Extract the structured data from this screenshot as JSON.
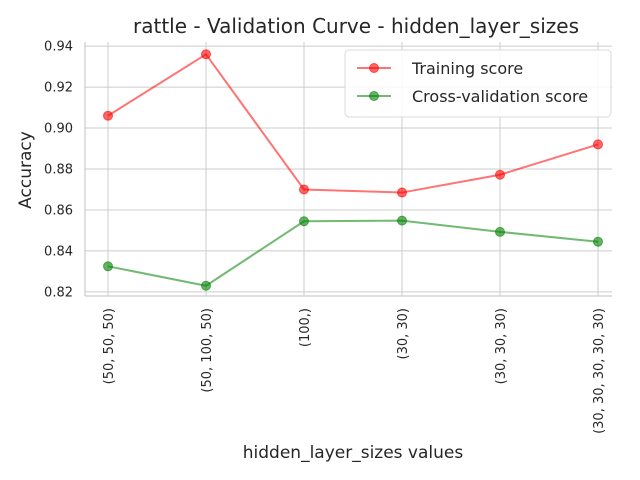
{
  "chart_data": {
    "type": "line",
    "title": "rattle - Validation Curve - hidden_layer_sizes",
    "xlabel": "hidden_layer_sizes values",
    "ylabel": "Accuracy",
    "categories": [
      "(50, 50, 50)",
      "(50, 100, 50)",
      "(100,)",
      "(30, 30)",
      "(30, 30, 30)",
      "(30, 30, 30, 30, 30)"
    ],
    "ylim": [
      0.818,
      0.942
    ],
    "yticks": [
      "0.82",
      "0.84",
      "0.86",
      "0.88",
      "0.90",
      "0.92",
      "0.94"
    ],
    "grid": true,
    "legend_position": "top-right",
    "series": [
      {
        "name": "Training score",
        "color": "#ff0000",
        "marker": "circle",
        "values": [
          0.906,
          0.936,
          0.87,
          0.8685,
          0.8772,
          0.892
        ]
      },
      {
        "name": "Cross-validation score",
        "color": "#008000",
        "marker": "circle",
        "values": [
          0.8325,
          0.823,
          0.8545,
          0.8548,
          0.8493,
          0.8445
        ]
      }
    ]
  }
}
